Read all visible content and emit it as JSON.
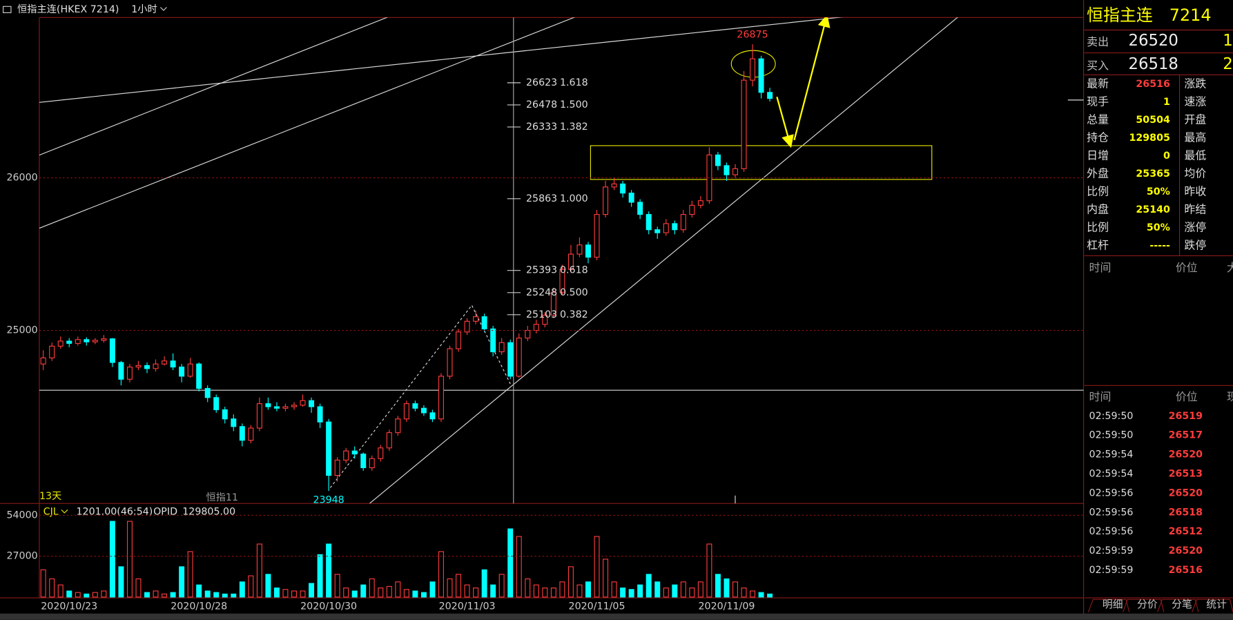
{
  "header": {
    "symbol": "恒指主连(HKEX 7214)",
    "period": "1小时"
  },
  "chart_data": [
    {
      "type": "candlestick",
      "ylim": [
        23866,
        27051
      ],
      "yticks": [
        26000,
        25000
      ],
      "up_color": "#ff3c3c",
      "down_color": "#00ffff",
      "categories": [
        null,
        null,
        null,
        "2020/10/23",
        null,
        null,
        null,
        null,
        null,
        null,
        null,
        null,
        null,
        null,
        null,
        null,
        null,
        null,
        "2020/10/28",
        null,
        null,
        null,
        null,
        null,
        null,
        null,
        null,
        null,
        null,
        null,
        null,
        null,
        null,
        "2020/10/30",
        null,
        null,
        null,
        null,
        null,
        null,
        null,
        null,
        null,
        null,
        null,
        null,
        null,
        null,
        null,
        "2020/11/03",
        null,
        null,
        null,
        null,
        null,
        null,
        null,
        null,
        null,
        null,
        null,
        null,
        null,
        null,
        "2020/11/05",
        null,
        null,
        null,
        null,
        null,
        null,
        null,
        null,
        null,
        null,
        null,
        null,
        null,
        null,
        "2020/11/09",
        null,
        null,
        null,
        null,
        null
      ],
      "candles": [
        [
          24780,
          24870,
          24740,
          24820
        ],
        [
          24820,
          24920,
          24800,
          24897
        ],
        [
          24897,
          24960,
          24880,
          24930
        ],
        [
          24930,
          24950,
          24890,
          24915
        ],
        [
          24915,
          24960,
          24900,
          24940
        ],
        [
          24940,
          24955,
          24900,
          24925
        ],
        [
          24925,
          24950,
          24910,
          24935
        ],
        [
          24935,
          24970,
          24920,
          24945
        ],
        [
          24945,
          24950,
          24760,
          24790
        ],
        [
          24790,
          24800,
          24640,
          24680
        ],
        [
          24680,
          24780,
          24660,
          24760
        ],
        [
          24760,
          24800,
          24740,
          24770
        ],
        [
          24770,
          24790,
          24720,
          24750
        ],
        [
          24750,
          24810,
          24730,
          24780
        ],
        [
          24780,
          24830,
          24770,
          24800
        ],
        [
          24800,
          24850,
          24740,
          24760
        ],
        [
          24760,
          24780,
          24660,
          24700
        ],
        [
          24700,
          24820,
          24690,
          24780
        ],
        [
          24780,
          24790,
          24600,
          24620
        ],
        [
          24620,
          24640,
          24530,
          24560
        ],
        [
          24560,
          24580,
          24460,
          24480
        ],
        [
          24480,
          24500,
          24390,
          24420
        ],
        [
          24420,
          24450,
          24340,
          24370
        ],
        [
          24370,
          24390,
          24240,
          24280
        ],
        [
          24280,
          24380,
          24260,
          24360
        ],
        [
          24360,
          24560,
          24340,
          24520
        ],
        [
          24520,
          24560,
          24480,
          24500
        ],
        [
          24500,
          24530,
          24470,
          24490
        ],
        [
          24490,
          24520,
          24470,
          24500
        ],
        [
          24500,
          24530,
          24480,
          24510
        ],
        [
          24510,
          24580,
          24500,
          24540
        ],
        [
          24540,
          24560,
          24460,
          24500
        ],
        [
          24500,
          24520,
          24360,
          24400
        ],
        [
          24400,
          24420,
          23948,
          24050
        ],
        [
          24050,
          24170,
          24010,
          24150
        ],
        [
          24150,
          24230,
          24130,
          24210
        ],
        [
          24210,
          24240,
          24160,
          24190
        ],
        [
          24190,
          24200,
          24080,
          24100
        ],
        [
          24100,
          24180,
          24080,
          24160
        ],
        [
          24160,
          24250,
          24140,
          24230
        ],
        [
          24230,
          24350,
          24210,
          24330
        ],
        [
          24330,
          24440,
          24310,
          24420
        ],
        [
          24420,
          24540,
          24400,
          24520
        ],
        [
          24520,
          24540,
          24470,
          24490
        ],
        [
          24490,
          24510,
          24440,
          24460
        ],
        [
          24460,
          24480,
          24400,
          24420
        ],
        [
          24420,
          24720,
          24400,
          24700
        ],
        [
          24700,
          24900,
          24680,
          24880
        ],
        [
          24880,
          25010,
          24860,
          24990
        ],
        [
          24990,
          25080,
          24970,
          25060
        ],
        [
          25060,
          25130,
          25040,
          25090
        ],
        [
          25090,
          25110,
          24990,
          25010
        ],
        [
          25010,
          25030,
          24830,
          24860
        ],
        [
          24860,
          24950,
          24840,
          24920
        ],
        [
          24920,
          24940,
          24680,
          24700
        ],
        [
          24700,
          24980,
          24690,
          24950
        ],
        [
          24950,
          25030,
          24930,
          25000
        ],
        [
          25000,
          25070,
          24980,
          25040
        ],
        [
          25040,
          25120,
          25020,
          25100
        ],
        [
          25100,
          25280,
          25080,
          25250
        ],
        [
          25250,
          25430,
          25230,
          25400
        ],
        [
          25400,
          25560,
          25380,
          25500
        ],
        [
          25500,
          25610,
          25480,
          25560
        ],
        [
          25560,
          25580,
          25440,
          25480
        ],
        [
          25480,
          25790,
          25460,
          25760
        ],
        [
          25760,
          25980,
          25740,
          25940
        ],
        [
          25940,
          26000,
          25920,
          25960
        ],
        [
          25960,
          25980,
          25870,
          25900
        ],
        [
          25900,
          25920,
          25810,
          25840
        ],
        [
          25840,
          25860,
          25730,
          25760
        ],
        [
          25760,
          25780,
          25630,
          25660
        ],
        [
          25660,
          25680,
          25600,
          25640
        ],
        [
          25640,
          25730,
          25620,
          25700
        ],
        [
          25700,
          25720,
          25630,
          25660
        ],
        [
          25660,
          25790,
          25640,
          25760
        ],
        [
          25760,
          25850,
          25740,
          25820
        ],
        [
          25820,
          25880,
          25800,
          25850
        ],
        [
          25850,
          26200,
          25830,
          26150
        ],
        [
          26150,
          26170,
          26050,
          26080
        ],
        [
          26080,
          26100,
          25980,
          26020
        ],
        [
          26020,
          26090,
          26000,
          26060
        ],
        [
          26060,
          26700,
          26040,
          26640
        ],
        [
          26640,
          26875,
          26600,
          26780
        ],
        [
          26780,
          26800,
          26520,
          26560
        ],
        [
          26560,
          26590,
          26500,
          26520
        ]
      ],
      "high_label": 26875,
      "low_label": 23948,
      "days_label": "13天",
      "contract_label": "恒指11",
      "fib": [
        {
          "price": 26623,
          "ratio": "1.618"
        },
        {
          "price": 26478,
          "ratio": "1.500"
        },
        {
          "price": 26333,
          "ratio": "1.382"
        },
        {
          "price": 25863,
          "ratio": "1.000"
        },
        {
          "price": 25393,
          "ratio": "0.618"
        },
        {
          "price": 25248,
          "ratio": "0.500"
        },
        {
          "price": 25103,
          "ratio": "0.382"
        }
      ]
    },
    {
      "type": "bar",
      "ylim": [
        0,
        60750
      ],
      "yticks": [
        54000,
        27000
      ],
      "indicator": "CJL",
      "indicator_value": "1201.00(46:54)",
      "opid_name": "OPID",
      "opid_value": "129805.00",
      "values": [
        18000,
        12000,
        8000,
        4000,
        3000,
        2000,
        3000,
        4000,
        50000,
        20000,
        50000,
        12000,
        3000,
        4000,
        2000,
        3000,
        20000,
        30000,
        8000,
        4000,
        3000,
        2000,
        2000,
        10000,
        14000,
        35000,
        15000,
        6000,
        5000,
        4000,
        4000,
        9000,
        28000,
        35000,
        15000,
        6000,
        4000,
        8000,
        12000,
        6000,
        7000,
        10000,
        5000,
        4000,
        3000,
        10000,
        30000,
        12000,
        15000,
        8000,
        6000,
        18000,
        8000,
        15000,
        45000,
        40000,
        12000,
        8000,
        6000,
        6000,
        10000,
        20000,
        8000,
        10000,
        40000,
        25000,
        10000,
        6000,
        5000,
        8000,
        15000,
        10000,
        6000,
        8000,
        10000,
        6000,
        10000,
        35000,
        15000,
        12000,
        10000,
        6000,
        4000,
        3000,
        2000
      ]
    }
  ],
  "quote_panel": {
    "title": "恒指主连",
    "code": 7214,
    "ask_label": "卖出",
    "ask_price": 26520,
    "ask_size": 1,
    "bid_label": "买入",
    "bid_price": 26518,
    "bid_size": 2,
    "rows": [
      [
        "最新",
        26516,
        "涨跌"
      ],
      [
        "现手",
        1,
        "速涨"
      ],
      [
        "总量",
        50504,
        "开盘"
      ],
      [
        "持仓",
        129805,
        "最高"
      ],
      [
        "日增",
        0,
        "最低"
      ],
      [
        "外盘",
        25365,
        "均价"
      ],
      [
        "比例",
        "50%",
        "昨收"
      ],
      [
        "内盘",
        25140,
        "昨结"
      ],
      [
        "比例",
        "50%",
        "涨停"
      ],
      [
        "杠杆",
        "-----",
        "跌停"
      ]
    ],
    "depth_header": [
      "时间",
      "价位",
      "大"
    ],
    "ticks_header": [
      "时间",
      "价位",
      "现"
    ],
    "ticks": [
      [
        "02:59:50",
        26519
      ],
      [
        "02:59:50",
        26517
      ],
      [
        "02:59:54",
        26520
      ],
      [
        "02:59:54",
        26513
      ],
      [
        "02:59:56",
        26520
      ],
      [
        "02:59:56",
        26518
      ],
      [
        "02:59:56",
        26512
      ],
      [
        "02:59:59",
        26520
      ],
      [
        "02:59:59",
        26516
      ]
    ],
    "tabs": [
      "明细",
      "分价",
      "分笔",
      "统计"
    ]
  }
}
